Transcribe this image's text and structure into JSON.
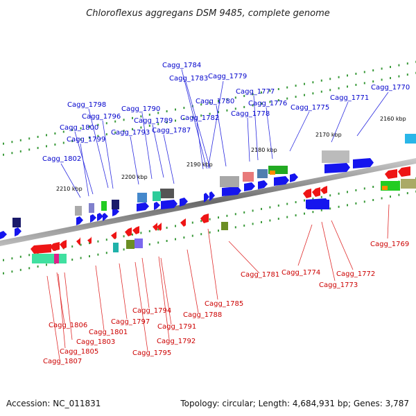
{
  "title": "Chloroflexus aggregans DSM 9485, complete genome",
  "accession": "Accession: NC_011831",
  "topology": "Topology: circular; Length: 4,684,931 bp; Genes: 3,787",
  "colors": {
    "top_label": "#0000cc",
    "bottom_label": "#cc0000",
    "forward_gene": "#0000ee",
    "reverse_gene": "#ee0000"
  },
  "kbp_markers": [
    "2160 kbp",
    "2170 kbp",
    "2180 kbp",
    "2190 kbp",
    "2200 kbp",
    "2210 kbp"
  ],
  "top_labels": [
    "Cagg_1784",
    "Cagg_1783",
    "Cagg_1779",
    "Cagg_1770",
    "Cagg_1780",
    "Cagg_1777",
    "Cagg_1771",
    "Cagg_1776",
    "Cagg_1775",
    "Cagg_1798",
    "Cagg_1796",
    "Cagg_1790",
    "Cagg_1778",
    "Cagg_1789",
    "Cagg_1782",
    "Cagg_1800",
    "Cagg_1793",
    "Cagg_1787",
    "Cagg_1799",
    "Cagg_1802"
  ],
  "bottom_labels": [
    "Cagg_1769",
    "Cagg_1781",
    "Cagg_1774",
    "Cagg_1772",
    "Cagg_1773",
    "Cagg_1785",
    "Cagg_1794",
    "Cagg_1788",
    "Cagg_1797",
    "Cagg_1791",
    "Cagg_1806",
    "Cagg_1801",
    "Cagg_1792",
    "Cagg_1803",
    "Cagg_1805",
    "Cagg_1795",
    "Cagg_1807"
  ]
}
